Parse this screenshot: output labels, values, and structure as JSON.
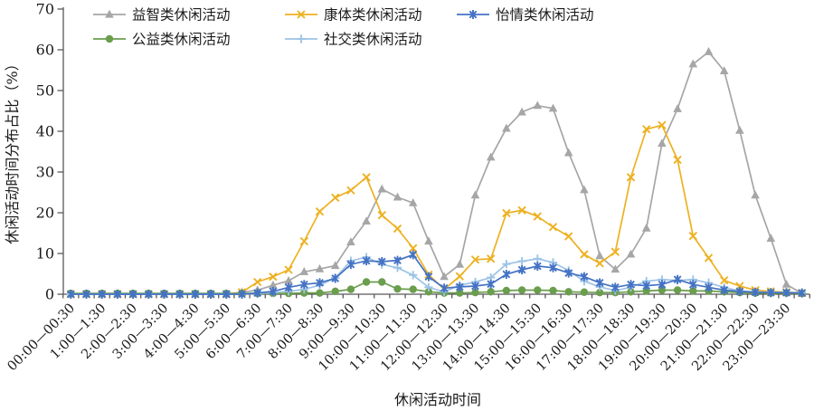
{
  "chart_data": {
    "type": "line",
    "title": "",
    "xlabel": "休闲活动时间",
    "ylabel": "休闲活动时间分布占比（%）",
    "ylim": [
      0,
      70
    ],
    "y_ticks": [
      0,
      10,
      20,
      30,
      40,
      50,
      60,
      70
    ],
    "x_slot_count": 48,
    "x_labeled_every": 2,
    "x_tick_labels": [
      "00:00—00:30",
      "1:00—1:30",
      "2:00—2:30",
      "3:00—3:30",
      "4:00—4:30",
      "5:00—5:30",
      "6:00—6:30",
      "7:00—7:30",
      "8:00—8:30",
      "9:00—9:30",
      "10:00—10:30",
      "11:00—11:30",
      "12:00—12:30",
      "13:00—13:30",
      "14:00—14:30",
      "15:00—15:30",
      "16:00—16:30",
      "17:00—17:30",
      "18:00—18:30",
      "19:00—19:30",
      "20:00—20:30",
      "21:00—21:30",
      "22:00—22:30",
      "23:00—23:30"
    ],
    "legend_position": "top",
    "legend_rows": [
      [
        0,
        1,
        2
      ],
      [
        3,
        4
      ]
    ],
    "grid": false,
    "axis_color": "#595959",
    "text_color": "#1a1a1a",
    "series": [
      {
        "name": "益智类休闲活动",
        "slug": "puzzle-leisure",
        "marker": "triangle",
        "color": "#a6a6a6",
        "values": [
          0,
          0,
          0,
          0,
          0,
          0,
          0,
          0,
          0,
          0,
          0,
          0.5,
          1.0,
          2.2,
          3.3,
          5.5,
          6.2,
          7.0,
          12.8,
          17.9,
          25.8,
          23.8,
          22.4,
          13.0,
          4.3,
          7.3,
          24.3,
          33.6,
          40.7,
          44.7,
          46.3,
          45.6,
          34.7,
          25.6,
          9.4,
          6.1,
          9.8,
          16.2,
          37.0,
          45.5,
          56.5,
          59.5,
          54.8,
          40.2,
          24.3,
          13.7,
          2.4,
          0.2
        ]
      },
      {
        "name": "康体类休闲活动",
        "slug": "fitness-leisure",
        "marker": "x",
        "color": "#edb120",
        "values": [
          0,
          0,
          0,
          0,
          0,
          0,
          0,
          0,
          0,
          0,
          0,
          0.5,
          3.0,
          4.3,
          6.0,
          13.0,
          20.3,
          23.7,
          25.5,
          28.7,
          19.4,
          16.1,
          11.3,
          4.8,
          1.2,
          4.4,
          8.5,
          8.7,
          19.9,
          20.6,
          19.1,
          16.5,
          14.2,
          9.8,
          7.6,
          10.4,
          28.7,
          40.5,
          41.5,
          33.0,
          14.3,
          8.9,
          3.4,
          2.0,
          1.0,
          0.7,
          0.5,
          0.3
        ]
      },
      {
        "name": "怡情类休闲活动",
        "slug": "affective-leisure",
        "marker": "asterisk",
        "color": "#4472c4",
        "values": [
          0,
          0,
          0,
          0,
          0,
          0,
          0,
          0,
          0,
          0,
          0,
          0,
          0.3,
          0.7,
          1.7,
          2.4,
          2.8,
          3.9,
          7.3,
          8.2,
          8.0,
          8.3,
          9.7,
          4.3,
          1.5,
          1.8,
          2.0,
          2.5,
          4.9,
          6.0,
          6.9,
          6.5,
          5.2,
          4.3,
          2.8,
          1.7,
          2.4,
          2.1,
          2.4,
          3.6,
          2.4,
          1.7,
          1.0,
          0.7,
          0.5,
          0.4,
          0.4,
          0.3
        ]
      },
      {
        "name": "公益类休闲活动",
        "slug": "charity-leisure",
        "marker": "circle",
        "color": "#6a9e4d",
        "values": [
          0.2,
          0.2,
          0.2,
          0.2,
          0.2,
          0.2,
          0.2,
          0.2,
          0.2,
          0.2,
          0.2,
          0.2,
          0.2,
          0.2,
          0.2,
          0.3,
          0.3,
          0.7,
          1.2,
          3.0,
          3.0,
          1.3,
          1.2,
          0.6,
          0.3,
          0.3,
          0.4,
          0.6,
          0.9,
          1.0,
          1.0,
          0.9,
          0.6,
          0.5,
          0.4,
          0.4,
          0.6,
          0.8,
          1.0,
          1.0,
          0.8,
          0.8,
          0.6,
          0.4,
          0.3,
          0.3,
          0.3,
          0.2
        ]
      },
      {
        "name": "社交类休闲活动",
        "slug": "social-leisure",
        "marker": "plus",
        "color": "#9dc3e6",
        "values": [
          0,
          0,
          0,
          0,
          0,
          0,
          0,
          0,
          0,
          0,
          0,
          0,
          0.2,
          0.4,
          0.7,
          1.2,
          2.2,
          4.0,
          8.2,
          9.1,
          7.3,
          6.5,
          4.7,
          1.7,
          0.6,
          2.2,
          3.0,
          4.1,
          7.4,
          8.1,
          8.7,
          7.8,
          5.8,
          3.2,
          1.8,
          0.9,
          1.7,
          3.2,
          3.6,
          3.4,
          3.6,
          2.8,
          1.7,
          0.8,
          0.6,
          0.5,
          0.4,
          0.4
        ]
      }
    ]
  }
}
